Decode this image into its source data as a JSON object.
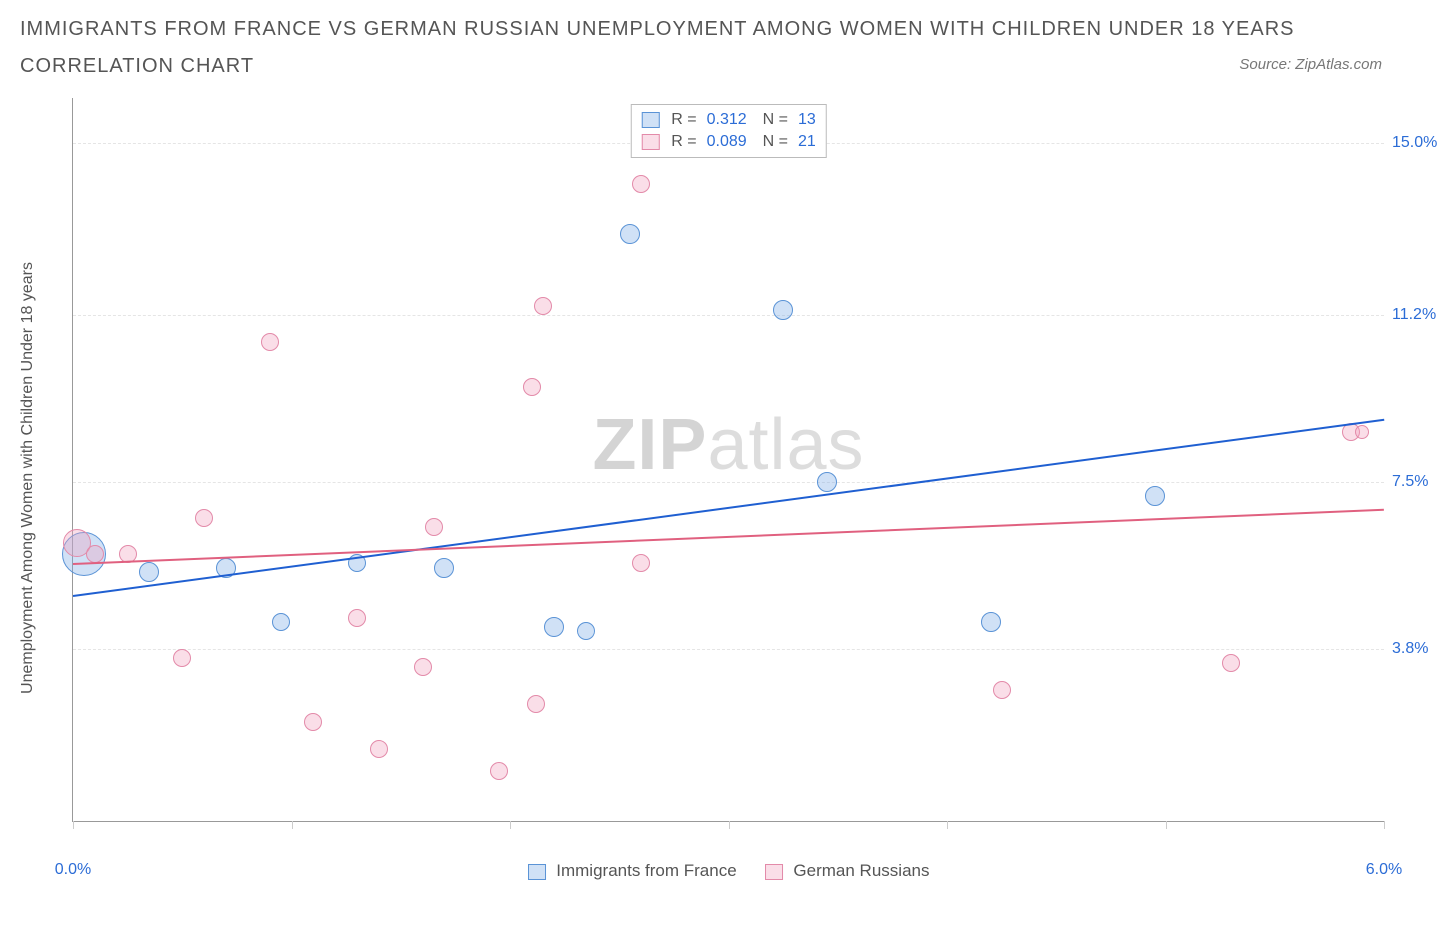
{
  "title_line1": "IMMIGRANTS FROM FRANCE VS GERMAN RUSSIAN UNEMPLOYMENT AMONG WOMEN WITH CHILDREN UNDER 18 YEARS",
  "title_line2": "CORRELATION CHART",
  "source_prefix": "Source: ",
  "source_name": "ZipAtlas.com",
  "y_axis_title": "Unemployment Among Women with Children Under 18 years",
  "watermark_zip": "ZIP",
  "watermark_atlas": "atlas",
  "chart": {
    "type": "scatter",
    "background_color": "#ffffff",
    "grid_color": "#e5e5e5",
    "axis_color": "#999999",
    "xlim": [
      0.0,
      6.0
    ],
    "ylim": [
      0.0,
      16.0
    ],
    "x_ticks": [
      0.0,
      1.0,
      2.0,
      3.0,
      4.0,
      5.0,
      6.0
    ],
    "x_tick_labels": {
      "0": "0.0%",
      "6": "6.0%"
    },
    "y_ticks": [
      3.8,
      7.5,
      11.2,
      15.0
    ],
    "y_tick_labels": [
      "3.8%",
      "7.5%",
      "11.2%",
      "15.0%"
    ],
    "tick_label_color": "#2b6cd6",
    "tick_label_fontsize": 16,
    "series": [
      {
        "key": "france",
        "label": "Immigrants from France",
        "fill": "rgba(120,170,230,0.35)",
        "stroke": "#5a93d6",
        "trend_color": "#1f5fd1",
        "trend_y_at_xmin": 5.0,
        "trend_y_at_xmax": 8.9,
        "R": "0.312",
        "N": "13",
        "points": [
          {
            "x": 0.05,
            "y": 5.9,
            "r": 22
          },
          {
            "x": 0.35,
            "y": 5.5,
            "r": 10
          },
          {
            "x": 0.7,
            "y": 5.6,
            "r": 10
          },
          {
            "x": 0.95,
            "y": 4.4,
            "r": 9
          },
          {
            "x": 1.3,
            "y": 5.7,
            "r": 9
          },
          {
            "x": 1.7,
            "y": 5.6,
            "r": 10
          },
          {
            "x": 2.2,
            "y": 4.3,
            "r": 10
          },
          {
            "x": 2.35,
            "y": 4.2,
            "r": 9
          },
          {
            "x": 2.55,
            "y": 13.0,
            "r": 10
          },
          {
            "x": 3.25,
            "y": 11.3,
            "r": 10
          },
          {
            "x": 3.45,
            "y": 7.5,
            "r": 10
          },
          {
            "x": 4.2,
            "y": 4.4,
            "r": 10
          },
          {
            "x": 4.95,
            "y": 7.2,
            "r": 10
          }
        ]
      },
      {
        "key": "german_russian",
        "label": "German Russians",
        "fill": "rgba(240,160,190,0.35)",
        "stroke": "#e38aa9",
        "trend_color": "#e0607f",
        "trend_y_at_xmin": 5.7,
        "trend_y_at_xmax": 6.9,
        "R": "0.089",
        "N": "21",
        "points": [
          {
            "x": 0.02,
            "y": 6.15,
            "r": 14
          },
          {
            "x": 0.1,
            "y": 5.9,
            "r": 9
          },
          {
            "x": 0.25,
            "y": 5.9,
            "r": 9
          },
          {
            "x": 0.5,
            "y": 3.6,
            "r": 9
          },
          {
            "x": 0.6,
            "y": 6.7,
            "r": 9
          },
          {
            "x": 0.9,
            "y": 10.6,
            "r": 9
          },
          {
            "x": 1.1,
            "y": 2.2,
            "r": 9
          },
          {
            "x": 1.3,
            "y": 4.5,
            "r": 9
          },
          {
            "x": 1.4,
            "y": 1.6,
            "r": 9
          },
          {
            "x": 1.6,
            "y": 3.4,
            "r": 9
          },
          {
            "x": 1.65,
            "y": 6.5,
            "r": 9
          },
          {
            "x": 1.95,
            "y": 1.1,
            "r": 9
          },
          {
            "x": 2.1,
            "y": 9.6,
            "r": 9
          },
          {
            "x": 2.12,
            "y": 2.6,
            "r": 9
          },
          {
            "x": 2.15,
            "y": 11.4,
            "r": 9
          },
          {
            "x": 2.6,
            "y": 14.1,
            "r": 9
          },
          {
            "x": 2.6,
            "y": 5.7,
            "r": 9
          },
          {
            "x": 4.25,
            "y": 2.9,
            "r": 9
          },
          {
            "x": 5.3,
            "y": 3.5,
            "r": 9
          },
          {
            "x": 5.85,
            "y": 8.6,
            "r": 9
          },
          {
            "x": 5.9,
            "y": 8.6,
            "r": 7
          }
        ]
      }
    ],
    "legend_top": {
      "r_label": "R =",
      "n_label": "N ="
    }
  }
}
